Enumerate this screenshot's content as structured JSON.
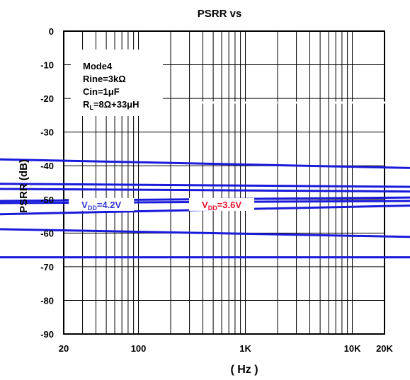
{
  "chart_data": {
    "type": "line",
    "title": "PSRR vs",
    "xlabel": "( Hz )",
    "ylabel": "PSRR (dB)",
    "x_scale": "log",
    "xlim": [
      20,
      20000
    ],
    "ylim": [
      -90,
      0
    ],
    "grid": true,
    "x_ticks": [
      {
        "value": 20,
        "label": "20"
      },
      {
        "value": 100,
        "label": "100"
      },
      {
        "value": 1000,
        "label": "1K"
      },
      {
        "value": 10000,
        "label": "10K"
      },
      {
        "value": 20000,
        "label": "20K"
      }
    ],
    "y_ticks": [
      {
        "value": 0,
        "label": "0"
      },
      {
        "value": -10,
        "label": "-10"
      },
      {
        "value": -20,
        "label": "-20"
      },
      {
        "value": -30,
        "label": "-30"
      },
      {
        "value": -40,
        "label": "-40"
      },
      {
        "value": -50,
        "label": "-50"
      },
      {
        "value": -60,
        "label": "-60"
      },
      {
        "value": -70,
        "label": "-70"
      },
      {
        "value": -80,
        "label": "-80"
      },
      {
        "value": -90,
        "label": "-90"
      }
    ],
    "annotation_lines": [
      "Mode4",
      "Rine=3kΩ",
      "Cin=1μF",
      "RL=8Ω+33μH"
    ],
    "series_labels": [
      {
        "text": "VDD=4.2V",
        "main": "V",
        "sub": "DD",
        "rest": "=4.2V",
        "color": "#3333cc",
        "x": 45,
        "y": -51.5
      },
      {
        "text": "VDD=3.6V",
        "main": "V",
        "sub": "DD",
        "rest": "=3.6V",
        "color": "#e8102a",
        "x": 600,
        "y": -51.5
      }
    ],
    "series": [
      {
        "color": "#1a1adb",
        "x": [
          20,
          20000
        ],
        "values": [
          -38.5,
          -40.5
        ]
      },
      {
        "color": "#1a1adb",
        "x": [
          20,
          20000
        ],
        "values": [
          -45.5,
          -46.2
        ]
      },
      {
        "color": "#1a1adb",
        "x": [
          20,
          20000
        ],
        "values": [
          -47.0,
          -47.6
        ]
      },
      {
        "color": "#1a1adb",
        "x": [
          20,
          20000
        ],
        "values": [
          -50.3,
          -49.5
        ]
      },
      {
        "color": "#1a1adb",
        "x": [
          20,
          20000
        ],
        "values": [
          -51.0,
          -50.5
        ]
      },
      {
        "color": "#1a1adb",
        "x": [
          20,
          20000
        ],
        "values": [
          -54.0,
          -52.0
        ]
      },
      {
        "color": "#1a1adb",
        "x": [
          20,
          20000
        ],
        "values": [
          -59.2,
          -61.0
        ]
      },
      {
        "color": "#1a1adb",
        "x": [
          20,
          20000
        ],
        "values": [
          -67.2,
          -67.2
        ]
      }
    ]
  }
}
